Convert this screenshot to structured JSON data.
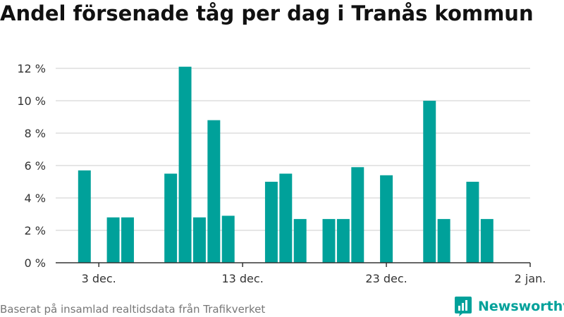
{
  "page": {
    "title": "Andel försenade tåg per dag i Tranås kommun",
    "footer": "Baserat på insamlad realtidsdata från Trafikverket",
    "brand": "Newsworthy"
  },
  "colors": {
    "bar": "#00a19a",
    "grid": "#dddddd",
    "axis": "#333333",
    "brand": "#00a19a"
  },
  "icons": {
    "brand_logo": "newsworthy-logo-icon"
  },
  "chart_data": {
    "type": "bar",
    "title": "Andel försenade tåg per dag i Tranås kommun",
    "xlabel": "",
    "ylabel": "",
    "ylim": [
      0,
      12
    ],
    "yticks": [
      0,
      2,
      4,
      6,
      8,
      10,
      12
    ],
    "ytick_labels": [
      "0 %",
      "2 %",
      "4 %",
      "6 %",
      "8 %",
      "10 %",
      "12 %"
    ],
    "xtick_labels": [
      {
        "date": "2023-12-03",
        "label": "3 dec."
      },
      {
        "date": "2023-12-13",
        "label": "13 dec."
      },
      {
        "date": "2023-12-23",
        "label": "23 dec."
      },
      {
        "date": "2024-01-02",
        "label": "2 jan."
      }
    ],
    "x_range": [
      "2023-11-30",
      "2024-01-02"
    ],
    "grid": true,
    "legend": "none",
    "bars": [
      {
        "date": "2023-12-02",
        "value": 5.7
      },
      {
        "date": "2023-12-04",
        "value": 2.8
      },
      {
        "date": "2023-12-05",
        "value": 2.8
      },
      {
        "date": "2023-12-08",
        "value": 5.5
      },
      {
        "date": "2023-12-09",
        "value": 12.1
      },
      {
        "date": "2023-12-10",
        "value": 2.8
      },
      {
        "date": "2023-12-11",
        "value": 8.8
      },
      {
        "date": "2023-12-12",
        "value": 2.9
      },
      {
        "date": "2023-12-15",
        "value": 5.0
      },
      {
        "date": "2023-12-16",
        "value": 5.5
      },
      {
        "date": "2023-12-17",
        "value": 2.7
      },
      {
        "date": "2023-12-19",
        "value": 2.7
      },
      {
        "date": "2023-12-20",
        "value": 2.7
      },
      {
        "date": "2023-12-21",
        "value": 5.9
      },
      {
        "date": "2023-12-23",
        "value": 5.4
      },
      {
        "date": "2023-12-26",
        "value": 10.0
      },
      {
        "date": "2023-12-27",
        "value": 2.7
      },
      {
        "date": "2023-12-29",
        "value": 5.0
      },
      {
        "date": "2023-12-30",
        "value": 2.7
      }
    ]
  }
}
